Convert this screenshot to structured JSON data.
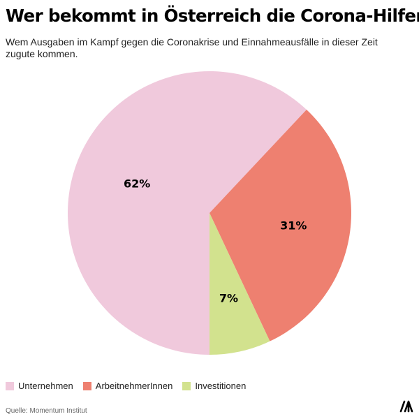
{
  "header": {
    "title": "Wer bekommt in Österreich die Corona-Hilfen?",
    "subtitle": "Wem Ausgaben im Kampf gegen die Coronakrise und Einnahmeausfälle in dieser Zeit zugute kommen."
  },
  "chart_data": {
    "type": "pie",
    "title": "Wer bekommt in Österreich die Corona-Hilfen?",
    "subtitle": "Wem Ausgaben im Kampf gegen die Coronakrise und Einnahmeausfälle in dieser Zeit zugute kommen.",
    "categories": [
      "Unternehmen",
      "ArbeitnehmerInnen",
      "Investitionen"
    ],
    "values": [
      62,
      31,
      7
    ],
    "labels": [
      "62%",
      "31%",
      "7%"
    ],
    "colors": [
      "#f0c9dc",
      "#ee8070",
      "#d2e28e"
    ],
    "legend_position": "bottom-left"
  },
  "footer": {
    "source": "Quelle: Momentum Institut"
  },
  "icons": {
    "logo": "momentum-logo-icon"
  }
}
